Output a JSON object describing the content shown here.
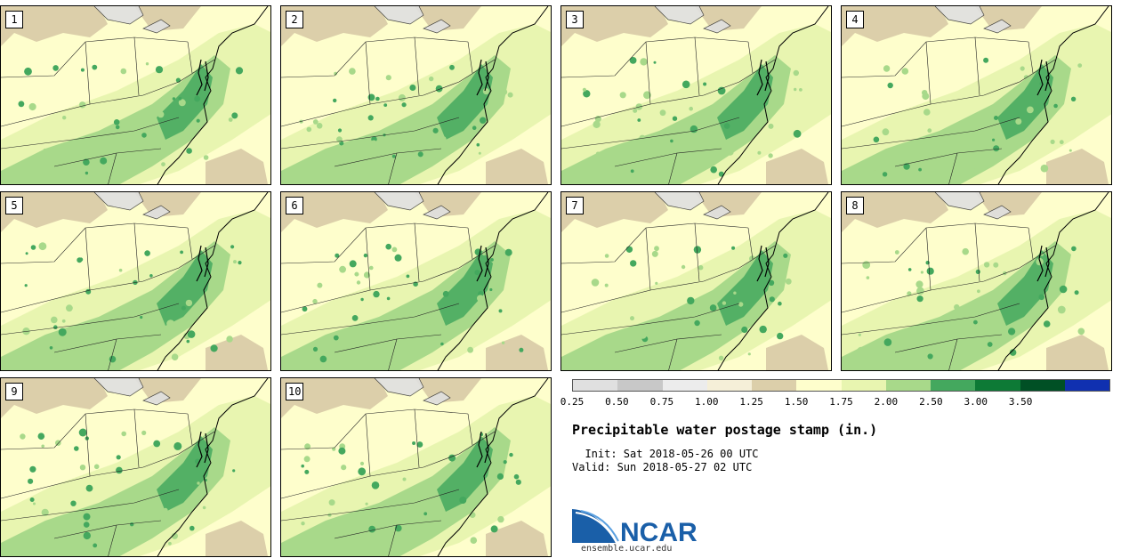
{
  "panels": [
    {
      "label": "1"
    },
    {
      "label": "2"
    },
    {
      "label": "3"
    },
    {
      "label": "4"
    },
    {
      "label": "5"
    },
    {
      "label": "6"
    },
    {
      "label": "7"
    },
    {
      "label": "8"
    },
    {
      "label": "9"
    },
    {
      "label": "10"
    }
  ],
  "colorbar": {
    "colors": [
      "#e0e0e0",
      "#c8c8c8",
      "#ececec",
      "#f5efd8",
      "#dccfaa",
      "#fefecc",
      "#e8f5b0",
      "#a8d98a",
      "#44a85e",
      "#0d7a36",
      "#005025",
      "#1030b0"
    ],
    "ticks": [
      "0.25",
      "0.50",
      "0.75",
      "1.00",
      "1.25",
      "1.50",
      "1.75",
      "2.00",
      "2.50",
      "3.00",
      "3.50"
    ]
  },
  "title": "Precipitable water postage stamp (in.)",
  "init_line": "  Init: Sat 2018-05-26 00 UTC",
  "valid_line": "Valid: Sun 2018-05-27 02 UTC",
  "logo": {
    "text": "NCAR",
    "url": "ensemble.ucar.edu",
    "color": "#1a5fa8"
  }
}
